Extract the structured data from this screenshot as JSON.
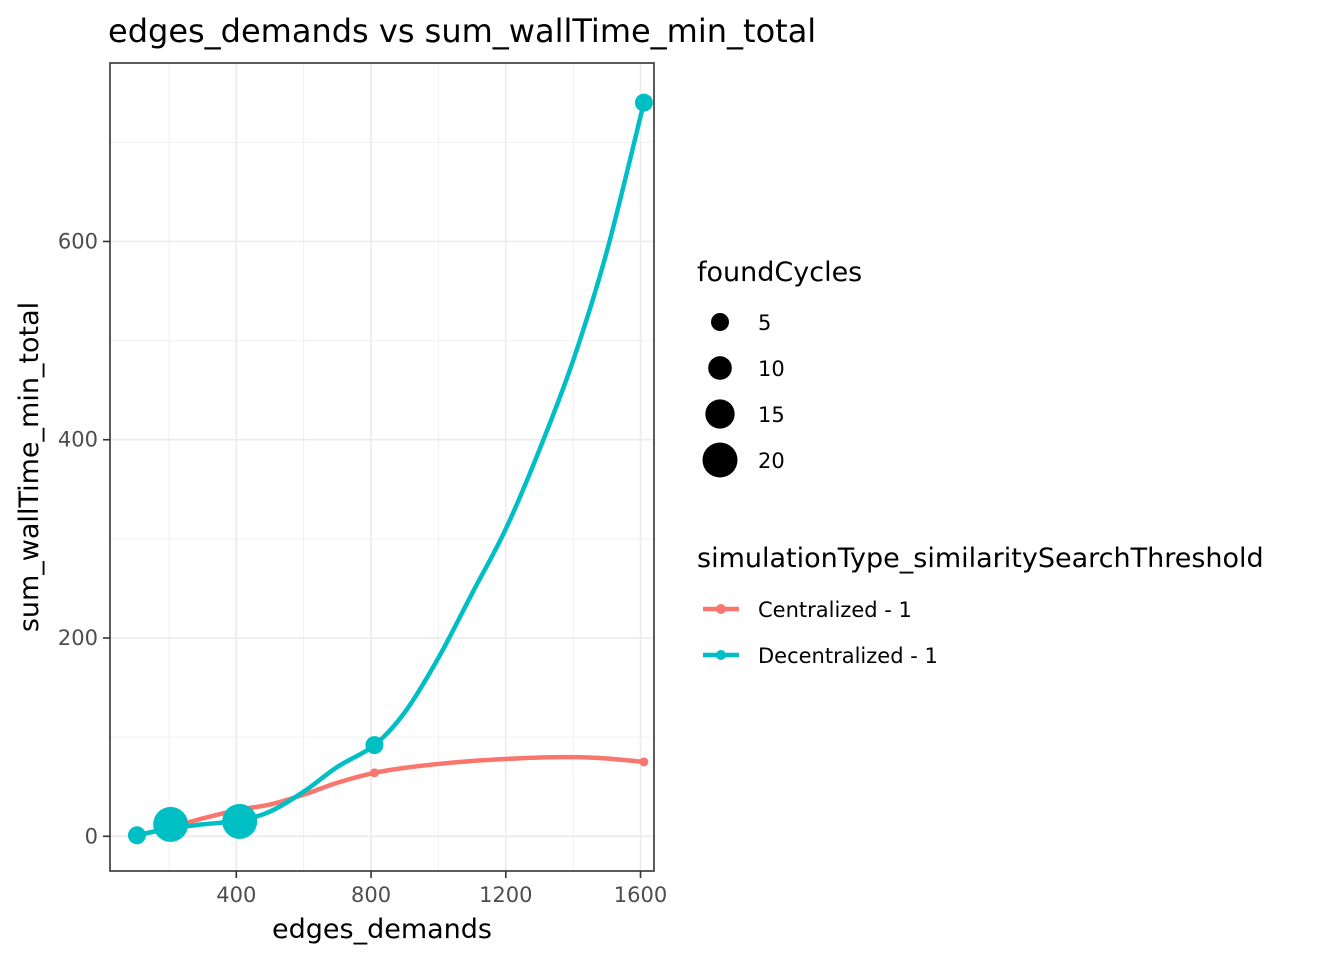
{
  "chart_data": {
    "type": "line",
    "title": "edges_demands  vs  sum_wallTime_min_total",
    "xlabel": "edges_demands",
    "ylabel": "sum_wallTime_min_total",
    "xlim": [
      25,
      1640
    ],
    "ylim": [
      -35,
      780
    ],
    "x_ticks": [
      400,
      800,
      1200,
      1600
    ],
    "y_ticks": [
      0,
      200,
      400,
      600
    ],
    "x_tick_labels": [
      "400",
      "800",
      "1200",
      "1600"
    ],
    "y_tick_labels": [
      "0",
      "200",
      "400",
      "600"
    ],
    "grid": true,
    "legend_position": "right",
    "size_legend": {
      "title": "foundCycles",
      "entries": [
        {
          "label": "5",
          "value": 5
        },
        {
          "label": "10",
          "value": 10
        },
        {
          "label": "15",
          "value": 15
        },
        {
          "label": "20",
          "value": 20
        }
      ]
    },
    "color_legend": {
      "title": "simulationType_similaritySearchThreshold"
    },
    "series": [
      {
        "name": "Centralized - 1",
        "color": "#F8766D",
        "points": [
          {
            "x": 105,
            "y": 1,
            "foundCycles": 1
          },
          {
            "x": 205,
            "y": 10,
            "foundCycles": 1
          },
          {
            "x": 410,
            "y": 26,
            "foundCycles": 1
          },
          {
            "x": 810,
            "y": 64,
            "foundCycles": 1
          },
          {
            "x": 1610,
            "y": 75,
            "foundCycles": 1
          }
        ],
        "smooth": [
          [
            105,
            1
          ],
          [
            205,
            9
          ],
          [
            300,
            18
          ],
          [
            410,
            27
          ],
          [
            500,
            32
          ],
          [
            600,
            42
          ],
          [
            700,
            54
          ],
          [
            810,
            64
          ],
          [
            900,
            69
          ],
          [
            1000,
            73
          ],
          [
            1100,
            76
          ],
          [
            1200,
            78
          ],
          [
            1300,
            79.5
          ],
          [
            1400,
            79.8
          ],
          [
            1500,
            78.5
          ],
          [
            1610,
            75
          ]
        ]
      },
      {
        "name": "Decentralized - 1",
        "color": "#00BFC4",
        "points": [
          {
            "x": 105,
            "y": 1,
            "foundCycles": 5
          },
          {
            "x": 205,
            "y": 12,
            "foundCycles": 20
          },
          {
            "x": 410,
            "y": 15,
            "foundCycles": 20
          },
          {
            "x": 810,
            "y": 92,
            "foundCycles": 5
          },
          {
            "x": 1610,
            "y": 740,
            "foundCycles": 5
          }
        ],
        "smooth": [
          [
            105,
            1
          ],
          [
            205,
            8
          ],
          [
            300,
            12
          ],
          [
            410,
            16
          ],
          [
            500,
            25
          ],
          [
            600,
            45
          ],
          [
            700,
            70
          ],
          [
            810,
            92
          ],
          [
            900,
            125
          ],
          [
            1000,
            180
          ],
          [
            1100,
            245
          ],
          [
            1200,
            310
          ],
          [
            1300,
            390
          ],
          [
            1400,
            480
          ],
          [
            1500,
            590
          ],
          [
            1610,
            740
          ]
        ]
      }
    ]
  }
}
